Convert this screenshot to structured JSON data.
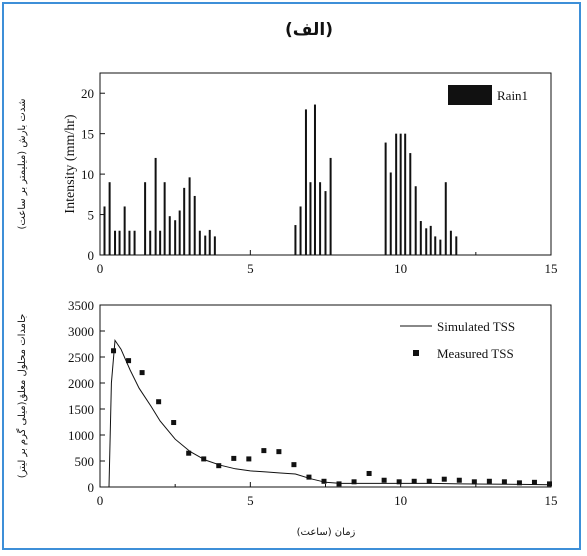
{
  "figure": {
    "title": "(الف)",
    "x_axis_label": "زمان (ساعت)",
    "colors": {
      "frame": "#3d8fd8",
      "ink": "#111111"
    }
  },
  "chart_data": [
    {
      "type": "bar",
      "ylabel_inner": "Intensity (mm/hr)",
      "ylabel_outer": "شدت بارش (میلیمتر بر ساعت)",
      "xlim": [
        0,
        15
      ],
      "ylim": [
        0,
        22.5
      ],
      "xticks": [
        "0",
        "5",
        "10",
        "15"
      ],
      "yticks": [
        "0",
        "5",
        "10",
        "15",
        "20"
      ],
      "legend": {
        "position": "top-right",
        "entries": [
          "Rain1"
        ]
      },
      "series": [
        {
          "name": "Rain1",
          "x": [
            0.15,
            0.32,
            0.5,
            0.65,
            0.82,
            0.98,
            1.15,
            1.5,
            1.67,
            1.85,
            2.0,
            2.15,
            2.32,
            2.5,
            2.65,
            2.8,
            2.98,
            3.15,
            3.32,
            3.5,
            3.65,
            3.82,
            6.5,
            6.67,
            6.85,
            7.0,
            7.15,
            7.32,
            7.5,
            7.67,
            9.5,
            9.67,
            9.85,
            10.0,
            10.15,
            10.32,
            10.5,
            10.67,
            10.85,
            11.0,
            11.15,
            11.32,
            11.5,
            11.67,
            11.85
          ],
          "values": [
            6,
            9,
            3,
            3,
            6,
            3,
            3,
            9,
            3,
            12,
            3,
            9,
            4.8,
            4.3,
            5.5,
            8.3,
            9.6,
            7.3,
            3,
            2.4,
            3.1,
            2.3,
            3.7,
            6,
            18,
            9,
            18.6,
            9,
            7.9,
            12,
            13.9,
            10.2,
            15,
            15,
            15,
            12.6,
            8.5,
            4.2,
            3.3,
            3.6,
            2.3,
            1.9,
            9,
            3,
            2.3
          ]
        }
      ]
    },
    {
      "type": "scatter",
      "ylabel": "جامدات محلول معلق(میلی گرم بر لیتر)",
      "xlim": [
        0,
        15
      ],
      "ylim": [
        0,
        3500
      ],
      "xticks": [
        "0",
        "5",
        "10",
        "15"
      ],
      "yticks": [
        "0",
        "500",
        "1000",
        "1500",
        "2000",
        "2500",
        "3000",
        "3500"
      ],
      "legend": {
        "position": "top-right"
      },
      "series": [
        {
          "name": "Simulated TSS",
          "style": "line",
          "x": [
            0.0,
            0.3,
            0.38,
            0.5,
            0.7,
            1.0,
            1.3,
            1.7,
            2.0,
            2.5,
            3.0,
            3.5,
            4.0,
            4.5,
            5.0,
            5.5,
            6.0,
            6.5,
            7.0,
            7.5,
            8.0,
            9.0,
            10.0,
            11.0,
            12.0,
            13.0,
            14.0,
            15.0
          ],
          "values": [
            0,
            0,
            2000,
            2820,
            2650,
            2250,
            1900,
            1550,
            1270,
            920,
            680,
            520,
            420,
            350,
            310,
            290,
            270,
            250,
            160,
            90,
            70,
            70,
            70,
            70,
            60,
            55,
            50,
            45
          ]
        },
        {
          "name": "Measured TSS",
          "style": "marker",
          "x": [
            0.45,
            0.95,
            1.4,
            1.95,
            2.45,
            2.95,
            3.45,
            3.95,
            4.45,
            4.95,
            5.45,
            5.95,
            6.45,
            6.95,
            7.45,
            7.95,
            8.45,
            8.95,
            9.45,
            9.95,
            10.45,
            10.95,
            11.45,
            11.95,
            12.45,
            12.95,
            13.45,
            13.95,
            14.45,
            14.95
          ],
          "values": [
            2620,
            2430,
            2200,
            1640,
            1240,
            650,
            540,
            410,
            550,
            540,
            700,
            680,
            430,
            190,
            110,
            60,
            100,
            260,
            130,
            100,
            110,
            110,
            150,
            130,
            100,
            110,
            100,
            80,
            90,
            60
          ]
        }
      ]
    }
  ]
}
